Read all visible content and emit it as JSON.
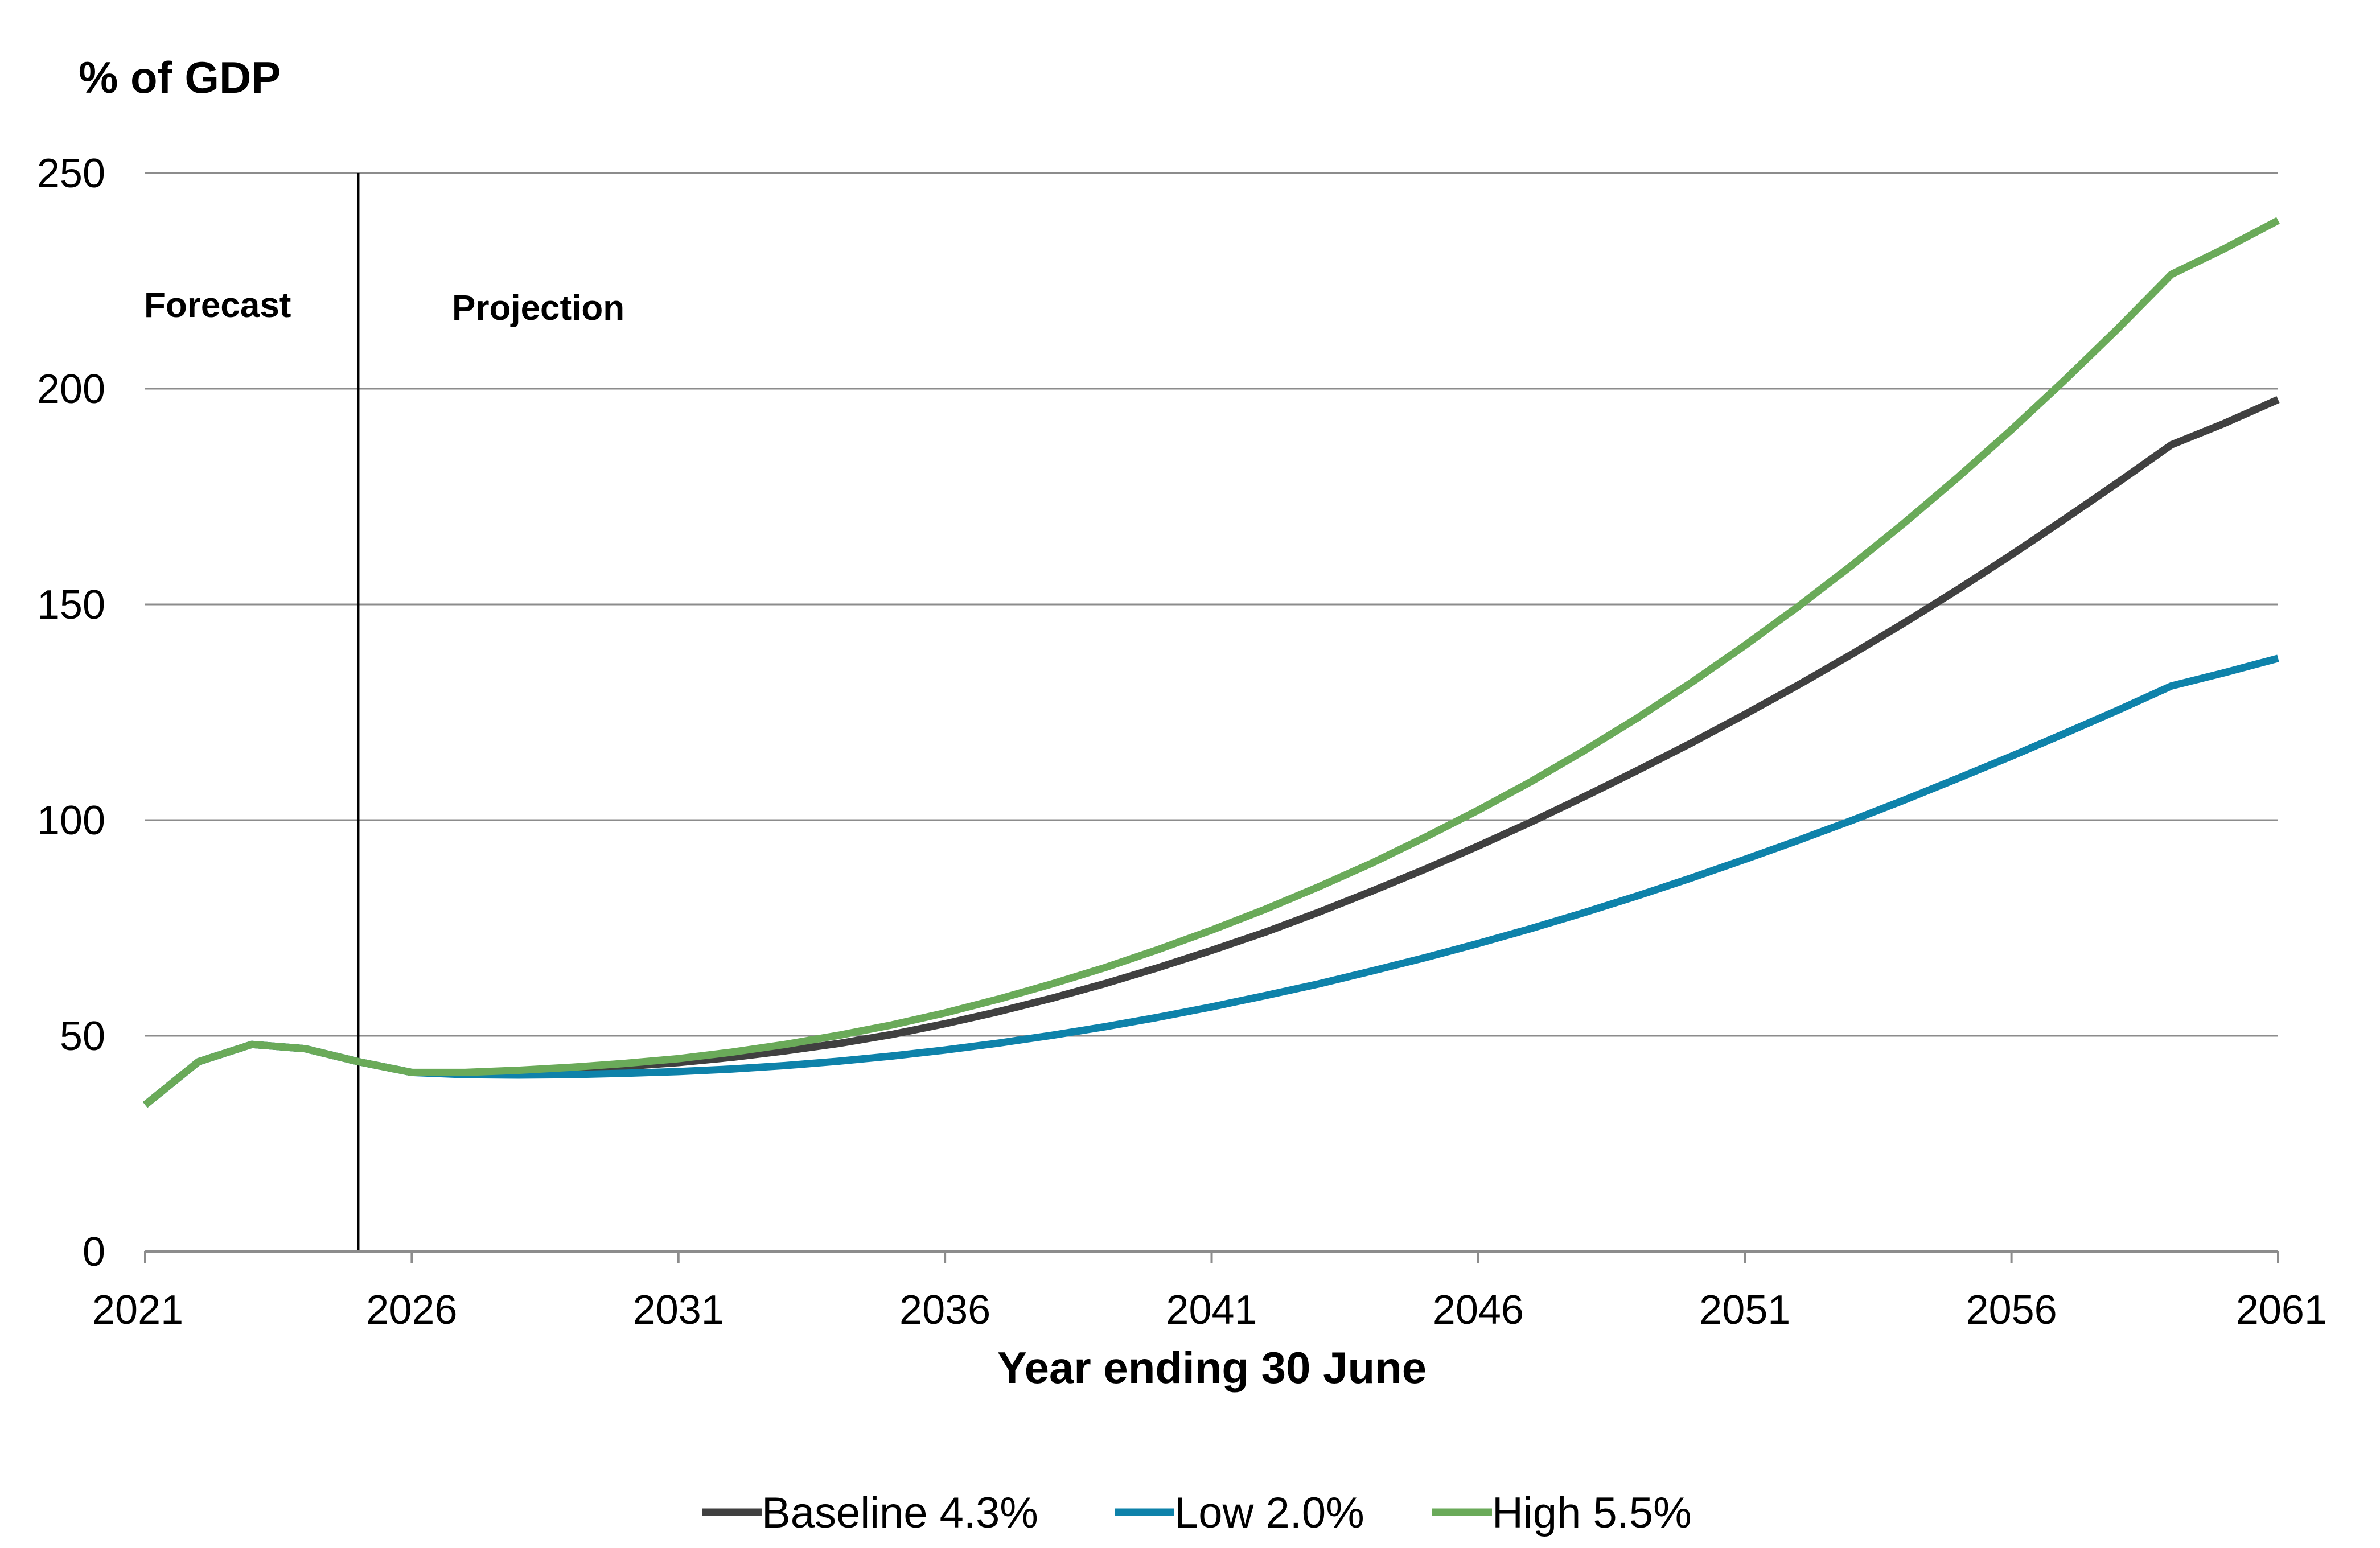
{
  "chart_data": {
    "type": "line",
    "title": "",
    "ylabel": "% of GDP",
    "xlabel": "Year ending 30 June",
    "ylim": [
      0,
      250
    ],
    "xlim": [
      2021,
      2061
    ],
    "yticks": [
      0,
      50,
      100,
      150,
      200,
      250
    ],
    "xticks": [
      2021,
      2026,
      2031,
      2036,
      2041,
      2046,
      2051,
      2056,
      2061
    ],
    "grid": "horizontal",
    "legend_position": "bottom",
    "divider_year": 2025,
    "annotations": {
      "forecast": "Forecast",
      "projection": "Projection"
    },
    "x": [
      2021,
      2022,
      2023,
      2024,
      2025,
      2026,
      2027,
      2028,
      2029,
      2030,
      2031,
      2032,
      2033,
      2034,
      2035,
      2036,
      2037,
      2038,
      2039,
      2040,
      2041,
      2042,
      2043,
      2044,
      2045,
      2046,
      2047,
      2048,
      2049,
      2050,
      2051,
      2052,
      2053,
      2054,
      2055,
      2056,
      2057,
      2058,
      2059,
      2060,
      2061
    ],
    "series": [
      {
        "name": "Baseline 4.3%",
        "color": "#404040",
        "values": [
          34,
          44,
          48,
          47,
          44,
          41.5,
          41.3,
          41.6,
          42.2,
          42.9,
          43.8,
          45,
          46.5,
          48.2,
          50.3,
          52.8,
          55.6,
          58.7,
          62.1,
          65.8,
          69.8,
          74,
          78.6,
          83.5,
          88.6,
          94,
          99.6,
          105.5,
          111.6,
          117.9,
          124.5,
          131.3,
          138.4,
          145.8,
          153.5,
          161.5,
          169.8,
          178.3,
          187,
          192,
          197.5
        ]
      },
      {
        "name": "Low 2.0%",
        "color": "#0E82AA",
        "values": [
          34,
          44,
          48,
          47,
          44,
          41.5,
          41,
          40.9,
          41,
          41.3,
          41.7,
          42.3,
          43.1,
          44.1,
          45.3,
          46.7,
          48.3,
          50.1,
          52.1,
          54.3,
          56.7,
          59.3,
          62,
          65,
          68.1,
          71.4,
          74.9,
          78.6,
          82.5,
          86.6,
          90.9,
          95.3,
          99.9,
          104.7,
          109.7,
          114.8,
          120.1,
          125.5,
          131.1,
          134.2,
          137.5
        ]
      },
      {
        "name": "High 5.5%",
        "color": "#6AAA59",
        "values": [
          34,
          44,
          48,
          47,
          44,
          41.5,
          41.5,
          42,
          42.7,
          43.6,
          44.7,
          46.2,
          48,
          50.1,
          52.5,
          55.3,
          58.5,
          62,
          65.8,
          70,
          74.5,
          79.3,
          84.5,
          90,
          96,
          102.3,
          109,
          116.2,
          123.8,
          131.9,
          140.5,
          149.5,
          159,
          169,
          179.5,
          190.5,
          202,
          214,
          226.5,
          232.5,
          239
        ]
      }
    ]
  }
}
